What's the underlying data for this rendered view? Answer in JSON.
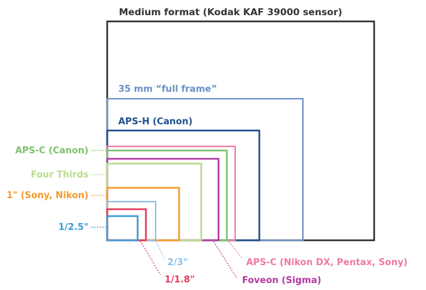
{
  "title": "Medium format (Kodak KAF 39000 sensor)",
  "sensors": {
    "medium_format": {
      "label": "Medium format (Kodak KAF 39000 sensor)",
      "color": "#333333"
    },
    "full_frame": {
      "label": "35 mm “full frame”",
      "color": "#6b8fc6"
    },
    "aps_h": {
      "label": "APS-H (Canon)",
      "color": "#1f4f8f"
    },
    "aps_c_canon": {
      "label": "APS-C (Canon)",
      "color": "#7dc36b"
    },
    "aps_c_nikon": {
      "label": "APS-C (Nikon DX, Pentax, Sony)",
      "color": "#ef7b9c"
    },
    "foveon": {
      "label": "Foveon (Sigma)",
      "color": "#b23aa3"
    },
    "four_thirds": {
      "label": "Four Thirds",
      "color": "#b9dc8c"
    },
    "one_inch": {
      "label": "1\" (Sony, Nikon)",
      "color": "#f39a2b"
    },
    "two_thirds": {
      "label": "2/3\"",
      "color": "#8cc0ea"
    },
    "one_1_8": {
      "label": "1/1.8\"",
      "color": "#e8385e"
    },
    "one_2_5": {
      "label": "1/2.5\"",
      "color": "#3d9ad8"
    }
  }
}
